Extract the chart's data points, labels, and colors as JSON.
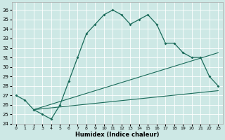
{
  "xlabel": "Humidex (Indice chaleur)",
  "bg_color": "#cde8e5",
  "line_color": "#1a6b5a",
  "grid_color": "#ffffff",
  "xlim": [
    -0.5,
    23.5
  ],
  "ylim": [
    24,
    36.8
  ],
  "yticks": [
    24,
    25,
    26,
    27,
    28,
    29,
    30,
    31,
    32,
    33,
    34,
    35,
    36
  ],
  "xticks": [
    0,
    1,
    2,
    3,
    4,
    5,
    6,
    7,
    8,
    9,
    10,
    11,
    12,
    13,
    14,
    15,
    16,
    17,
    18,
    19,
    20,
    21,
    22,
    23
  ],
  "curve1_x": [
    0,
    1,
    2,
    3,
    4,
    5,
    6,
    7,
    8,
    9,
    10,
    11,
    12,
    13,
    14,
    15,
    16,
    17,
    18,
    19,
    20,
    21,
    22,
    23
  ],
  "curve1_y": [
    27.0,
    26.5,
    25.5,
    25.0,
    24.5,
    26.0,
    28.5,
    31.0,
    33.5,
    34.5,
    35.5,
    36.0,
    35.5,
    34.5,
    35.0,
    35.5,
    34.5,
    32.5,
    32.5,
    31.5,
    31.0,
    31.0,
    29.0,
    28.0
  ],
  "line2_x": [
    2,
    23
  ],
  "line2_y": [
    25.5,
    27.5
  ],
  "line3_x": [
    2,
    23
  ],
  "line3_y": [
    25.5,
    31.5
  ]
}
